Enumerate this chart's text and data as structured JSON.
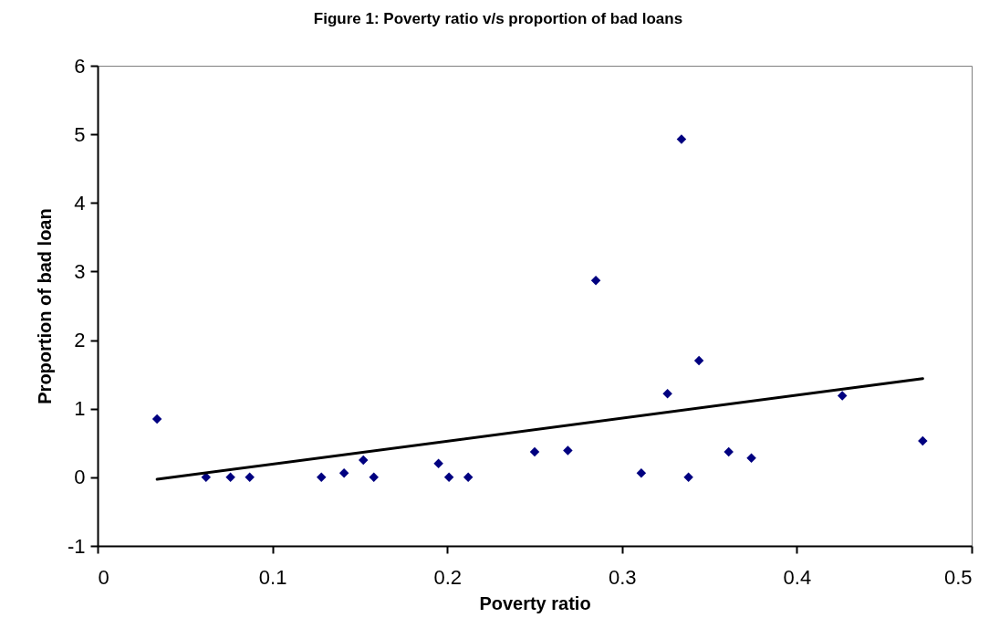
{
  "chart_data": {
    "type": "scatter",
    "title": "Figure 1: Poverty ratio v/s proportion of bad loans",
    "xlabel": "Poverty ratio",
    "ylabel": "Proportion of bad loan",
    "xlim": [
      0,
      0.5
    ],
    "xticks": [
      0,
      0.1,
      0.2,
      0.3,
      0.4,
      0.5
    ],
    "ylim": [
      -1,
      6
    ],
    "yticks": [
      -1,
      0,
      1,
      2,
      3,
      4,
      5,
      6
    ],
    "grid": false,
    "series": [
      {
        "marker": "diamond",
        "color": "#000080",
        "x": [
          0.034,
          0.062,
          0.076,
          0.087,
          0.128,
          0.141,
          0.152,
          0.158,
          0.195,
          0.201,
          0.212,
          0.25,
          0.269,
          0.285,
          0.311,
          0.326,
          0.334,
          0.338,
          0.344,
          0.361,
          0.374,
          0.426,
          0.472
        ],
        "values": [
          0.85,
          0,
          0,
          0,
          0,
          0.06,
          0.25,
          0,
          0.2,
          0,
          0,
          0.37,
          0.39,
          2.87,
          0.06,
          1.22,
          4.93,
          0,
          1.7,
          0.37,
          0.28,
          1.19,
          0.53
        ]
      },
      {
        "type": "line",
        "marker": "none",
        "color": "#000000",
        "x": [
          0.034,
          0.472
        ],
        "values": [
          -0.03,
          1.44
        ]
      }
    ]
  }
}
